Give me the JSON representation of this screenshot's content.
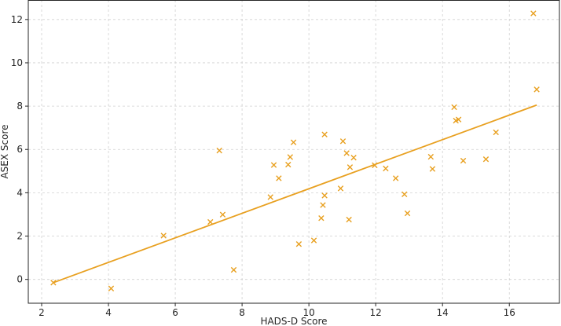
{
  "chart_data": {
    "type": "scatter",
    "xlabel": "HADS-D Score",
    "ylabel": "ASEX Score",
    "xlim": [
      1.6,
      17.5
    ],
    "ylim": [
      -1.1,
      12.9
    ],
    "x_ticks": [
      2,
      4,
      6,
      8,
      10,
      12,
      14,
      16
    ],
    "y_ticks": [
      0,
      2,
      4,
      6,
      8,
      10,
      12
    ],
    "grid": true,
    "marker": "x",
    "color": "#E8A020",
    "points": [
      {
        "x": 2.35,
        "y": -0.15
      },
      {
        "x": 4.08,
        "y": -0.42
      },
      {
        "x": 5.65,
        "y": 2.02
      },
      {
        "x": 7.05,
        "y": 2.65
      },
      {
        "x": 7.32,
        "y": 5.95
      },
      {
        "x": 7.42,
        "y": 2.99
      },
      {
        "x": 7.75,
        "y": 0.44
      },
      {
        "x": 8.85,
        "y": 3.8
      },
      {
        "x": 8.95,
        "y": 5.28
      },
      {
        "x": 9.1,
        "y": 4.67
      },
      {
        "x": 9.38,
        "y": 5.3
      },
      {
        "x": 9.44,
        "y": 5.65
      },
      {
        "x": 9.54,
        "y": 6.33
      },
      {
        "x": 9.7,
        "y": 1.63
      },
      {
        "x": 10.15,
        "y": 1.8
      },
      {
        "x": 10.37,
        "y": 2.83
      },
      {
        "x": 10.42,
        "y": 3.43
      },
      {
        "x": 10.47,
        "y": 3.87
      },
      {
        "x": 10.47,
        "y": 6.69
      },
      {
        "x": 10.95,
        "y": 4.2
      },
      {
        "x": 11.02,
        "y": 6.38
      },
      {
        "x": 11.13,
        "y": 5.83
      },
      {
        "x": 11.2,
        "y": 2.76
      },
      {
        "x": 11.23,
        "y": 5.18
      },
      {
        "x": 11.34,
        "y": 5.62
      },
      {
        "x": 11.97,
        "y": 5.27
      },
      {
        "x": 12.3,
        "y": 5.12
      },
      {
        "x": 12.6,
        "y": 4.67
      },
      {
        "x": 12.86,
        "y": 3.93
      },
      {
        "x": 12.95,
        "y": 3.05
      },
      {
        "x": 13.65,
        "y": 5.66
      },
      {
        "x": 13.7,
        "y": 5.1
      },
      {
        "x": 14.35,
        "y": 7.95
      },
      {
        "x": 14.4,
        "y": 7.33
      },
      {
        "x": 14.48,
        "y": 7.38
      },
      {
        "x": 14.62,
        "y": 5.48
      },
      {
        "x": 15.3,
        "y": 5.55
      },
      {
        "x": 15.6,
        "y": 6.79
      },
      {
        "x": 16.72,
        "y": 12.28
      },
      {
        "x": 16.82,
        "y": 8.77
      }
    ],
    "trend_line": {
      "x": [
        2.35,
        16.82
      ],
      "y": [
        -0.15,
        8.05
      ]
    }
  }
}
